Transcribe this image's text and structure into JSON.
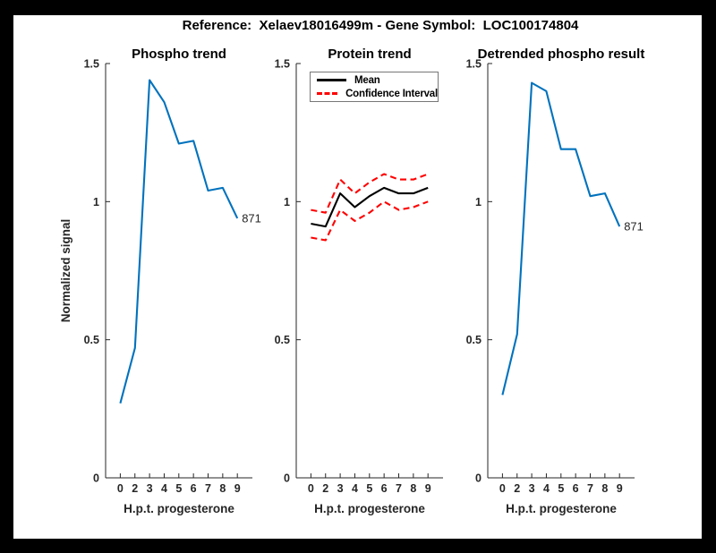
{
  "figure_title": "Reference:  Xelaev18016499m - Gene Symbol:  LOC100174804",
  "colors": {
    "frame_background": "#000000",
    "figure_background": "#ffffff",
    "axis": "#262626",
    "phospho_line": "#0072BD",
    "mean_line": "#000000",
    "confidence_line": "#ff0000"
  },
  "chart_data": [
    {
      "type": "line",
      "title": "Phospho trend",
      "xlabel": "H.p.t. progesterone",
      "ylabel": "Normalized signal",
      "x_tick_labels": [
        "0",
        "2",
        "3",
        "4",
        "5",
        "6",
        "7",
        "8",
        "9"
      ],
      "y_tick_labels": [
        "0",
        "0.5",
        "1",
        "1.5"
      ],
      "y_tick_values": [
        0,
        0.5,
        1,
        1.5
      ],
      "ylim": [
        0,
        1.5
      ],
      "grid": false,
      "end_label": "871",
      "series": [
        {
          "name": "871",
          "color": "#0072BD",
          "dash": false,
          "values": [
            0.27,
            0.47,
            1.44,
            1.36,
            1.21,
            1.22,
            1.04,
            1.05,
            0.94
          ]
        }
      ]
    },
    {
      "type": "line",
      "title": "Protein trend",
      "xlabel": "H.p.t. progesterone",
      "ylabel": "",
      "x_tick_labels": [
        "0",
        "2",
        "3",
        "4",
        "5",
        "6",
        "7",
        "8",
        "9"
      ],
      "y_tick_labels": [
        "0",
        "0.5",
        "1",
        "1.5"
      ],
      "y_tick_values": [
        0,
        0.5,
        1,
        1.5
      ],
      "ylim": [
        0,
        1.5
      ],
      "grid": false,
      "legend_position": "top-left-inside",
      "legend": [
        {
          "label": "Mean",
          "color": "#000000",
          "dash": false
        },
        {
          "label": "Confidence Interval",
          "color": "#ff0000",
          "dash": true
        }
      ],
      "series": [
        {
          "name": "Mean",
          "color": "#000000",
          "dash": false,
          "values": [
            0.92,
            0.91,
            1.03,
            0.98,
            1.02,
            1.05,
            1.03,
            1.03,
            1.05
          ]
        },
        {
          "name": "Confidence Interval upper",
          "color": "#ff0000",
          "dash": true,
          "values": [
            0.97,
            0.96,
            1.08,
            1.03,
            1.07,
            1.1,
            1.08,
            1.08,
            1.1
          ]
        },
        {
          "name": "Confidence Interval lower",
          "color": "#ff0000",
          "dash": true,
          "values": [
            0.87,
            0.86,
            0.97,
            0.93,
            0.96,
            1.0,
            0.97,
            0.98,
            1.0
          ]
        }
      ]
    },
    {
      "type": "line",
      "title": "Detrended phospho result",
      "xlabel": "H.p.t. progesterone",
      "ylabel": "",
      "x_tick_labels": [
        "0",
        "2",
        "3",
        "4",
        "5",
        "6",
        "7",
        "8",
        "9"
      ],
      "y_tick_labels": [
        "0",
        "0.5",
        "1",
        "1.5"
      ],
      "y_tick_values": [
        0,
        0.5,
        1,
        1.5
      ],
      "ylim": [
        0,
        1.5
      ],
      "grid": false,
      "end_label": "871",
      "series": [
        {
          "name": "871",
          "color": "#0072BD",
          "dash": false,
          "values": [
            0.3,
            0.52,
            1.43,
            1.4,
            1.19,
            1.19,
            1.02,
            1.03,
            0.91
          ]
        }
      ]
    }
  ]
}
